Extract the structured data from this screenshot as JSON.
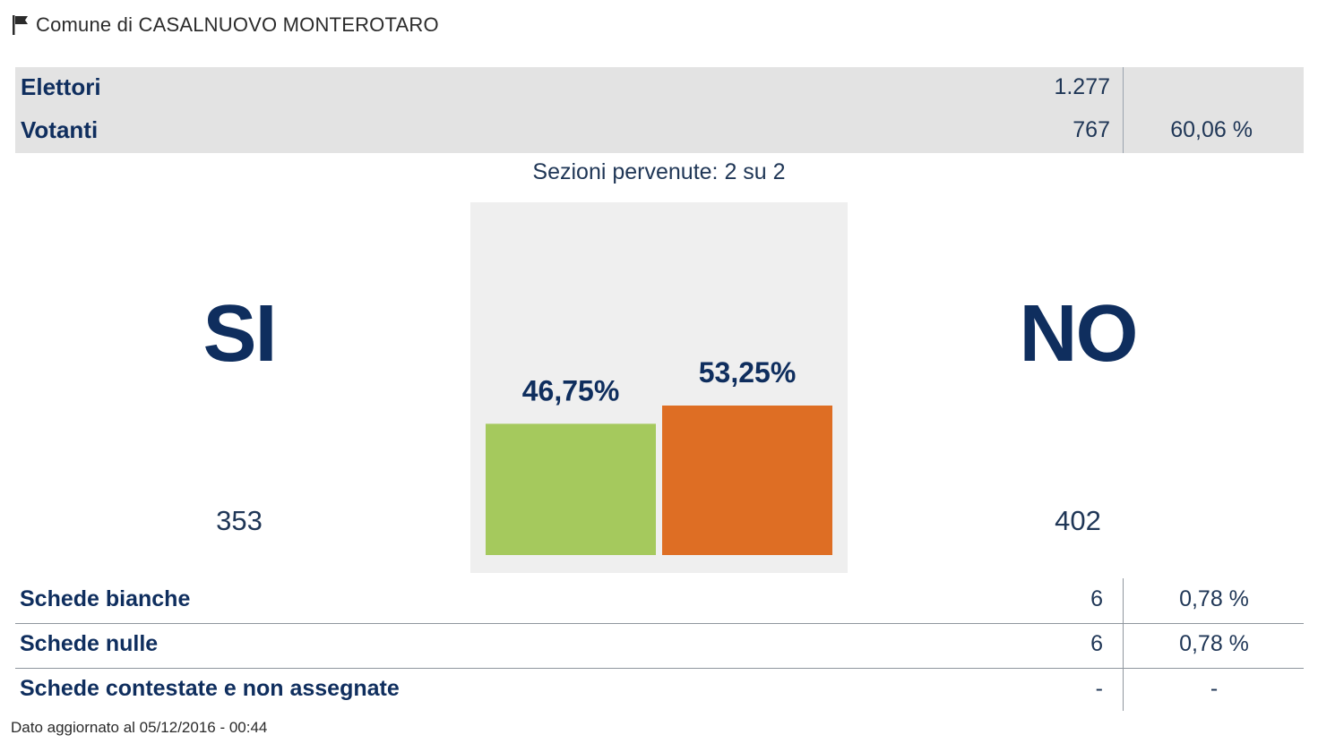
{
  "header": {
    "title": "Comune di CASALNUOVO MONTEROTARO",
    "icon": "flag-icon"
  },
  "summary": {
    "rows": [
      {
        "label": "Elettori",
        "value": "1.277",
        "percent": ""
      },
      {
        "label": "Votanti",
        "value": "767",
        "percent": "60,06 %"
      }
    ]
  },
  "sections_text": "Sezioni pervenute: 2 su 2",
  "results": {
    "si": {
      "label": "SI",
      "count": "353"
    },
    "no": {
      "label": "NO",
      "count": "402"
    }
  },
  "chart_data": {
    "type": "bar",
    "categories": [
      "SI",
      "NO"
    ],
    "values": [
      46.75,
      53.25
    ],
    "value_labels": [
      "46,75%",
      "53,25%"
    ],
    "colors": [
      "#a5c95d",
      "#de6e24"
    ],
    "ylim": [
      0,
      100
    ],
    "title": "",
    "xlabel": "",
    "ylabel": "",
    "grid": false
  },
  "details": [
    {
      "label": "Schede bianche",
      "value": "6",
      "percent": "0,78 %"
    },
    {
      "label": "Schede nulle",
      "value": "6",
      "percent": "0,78 %"
    },
    {
      "label": "Schede contestate e non assegnate",
      "value": "-",
      "percent": "-"
    }
  ],
  "footer": "Dato aggiornato al 05/12/2016 - 00:44",
  "colors": {
    "primary_text": "#0f2e5e",
    "summary_bg": "#e3e3e3",
    "chart_bg": "#efefef"
  }
}
